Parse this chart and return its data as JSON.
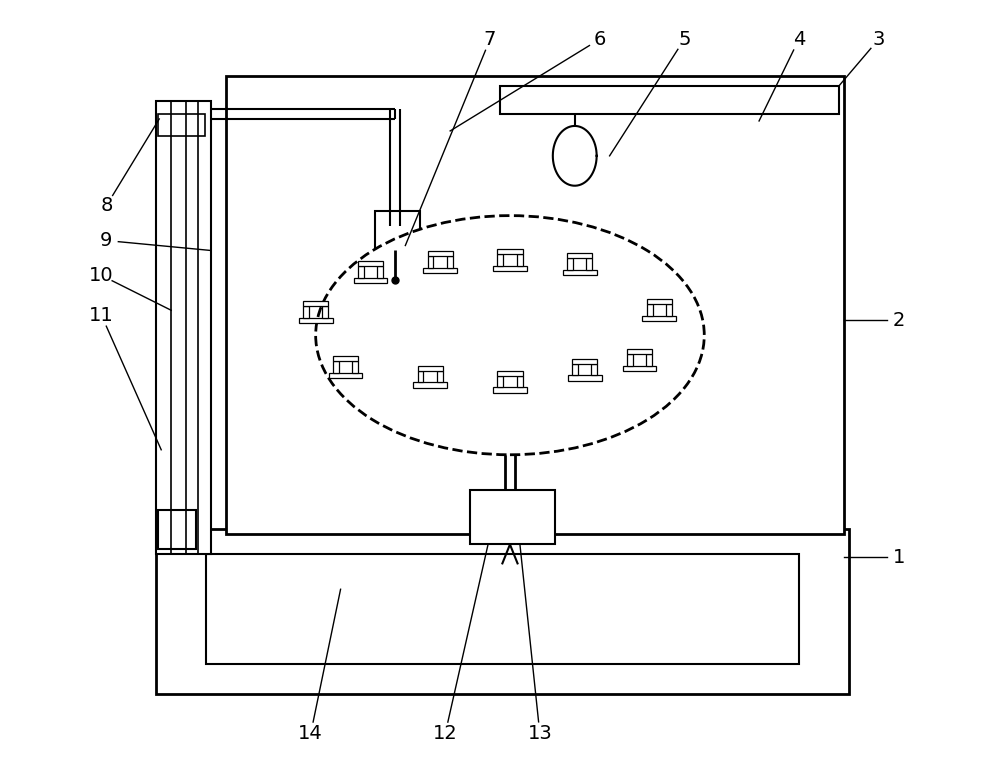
{
  "bg_color": "#ffffff",
  "line_color": "#000000",
  "label_color": "#000000",
  "fig_width": 10.0,
  "fig_height": 7.75,
  "dpi": 100
}
